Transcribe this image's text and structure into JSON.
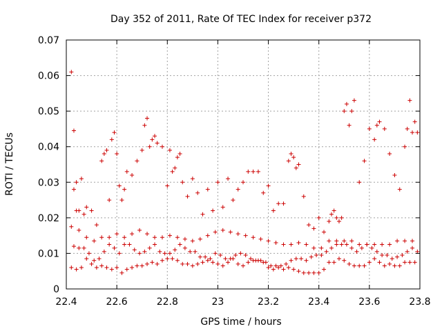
{
  "chart_data": {
    "type": "scatter",
    "title": "Day 352 of 2011, Rate Of TEC Index for receiver p372",
    "xlabel": "GPS time / hours",
    "ylabel": "ROTI / TECUs",
    "xlim": [
      22.4,
      23.8
    ],
    "ylim": [
      0,
      0.07
    ],
    "xticks": [
      "22.4",
      "22.6",
      "22.8",
      "23",
      "23.2",
      "23.4",
      "23.6",
      "23.8"
    ],
    "yticks": [
      "0",
      "0.01",
      "0.02",
      "0.03",
      "0.04",
      "0.05",
      "0.06",
      "0.07"
    ],
    "grid": true,
    "marker": "+",
    "color": "#cc0000",
    "series": [
      {
        "name": "ROTI",
        "x": [
          22.42,
          22.43,
          22.43,
          22.44,
          22.44,
          22.45,
          22.46,
          22.47,
          22.48,
          22.5,
          22.52,
          22.54,
          22.55,
          22.56,
          22.57,
          22.58,
          22.59,
          22.6,
          22.61,
          22.62,
          22.63,
          22.64,
          22.66,
          22.68,
          22.7,
          22.71,
          22.72,
          22.73,
          22.74,
          22.75,
          22.76,
          22.78,
          22.8,
          22.81,
          22.82,
          22.83,
          22.84,
          22.85,
          22.86,
          22.88,
          22.9,
          22.92,
          22.94,
          22.96,
          22.98,
          23.0,
          23.02,
          23.04,
          23.06,
          23.08,
          23.1,
          23.12,
          23.14,
          23.16,
          23.18,
          23.2,
          23.22,
          23.24,
          23.26,
          23.28,
          23.29,
          23.3,
          23.31,
          23.32,
          23.34,
          23.36,
          23.38,
          23.4,
          23.42,
          23.44,
          23.45,
          23.46,
          23.47,
          23.48,
          23.49,
          23.5,
          23.51,
          23.52,
          23.53,
          23.54,
          23.56,
          23.58,
          23.6,
          23.62,
          23.63,
          23.64,
          23.66,
          23.68,
          23.7,
          23.72,
          23.74,
          23.75,
          23.76,
          23.77,
          23.78,
          23.79,
          22.42,
          22.44,
          22.46,
          22.48,
          22.5,
          22.52,
          22.54,
          22.56,
          22.58,
          22.6,
          22.62,
          22.64,
          22.66,
          22.68,
          22.7,
          22.72,
          22.74,
          22.76,
          22.78,
          22.8,
          22.82,
          22.84,
          22.86,
          22.88,
          22.9,
          22.92,
          22.94,
          22.96,
          22.98,
          23.0,
          23.02,
          23.04,
          23.06,
          23.08,
          23.1,
          23.12,
          23.14,
          23.16,
          23.18,
          23.2,
          23.22,
          23.24,
          23.26,
          23.28,
          23.3,
          23.32,
          23.34,
          23.36,
          23.38,
          23.4,
          23.42,
          23.44,
          23.46,
          23.48,
          23.5,
          23.52,
          23.54,
          23.56,
          23.58,
          23.6,
          23.62,
          23.64,
          23.66,
          23.68,
          23.7,
          23.72,
          23.74,
          23.76,
          23.78,
          22.43,
          22.45,
          22.47,
          22.49,
          22.51,
          22.53,
          22.55,
          22.57,
          22.59,
          22.61,
          22.63,
          22.65,
          22.67,
          22.69,
          22.71,
          22.73,
          22.75,
          22.77,
          22.79,
          22.81,
          22.83,
          22.85,
          22.87,
          22.89,
          22.91,
          22.93,
          22.95,
          22.97,
          22.99,
          23.01,
          23.03,
          23.05,
          23.07,
          23.09,
          23.11,
          23.13,
          23.15,
          23.17,
          23.19,
          23.21,
          23.23,
          23.25,
          23.27,
          23.29,
          23.31,
          23.33,
          23.35,
          23.37,
          23.39,
          23.41,
          23.43,
          23.45,
          23.47,
          23.49,
          23.51,
          23.53,
          23.55,
          23.57,
          23.59,
          23.61,
          23.63,
          23.65,
          23.67,
          23.69,
          23.71,
          23.73,
          23.75,
          23.77,
          23.79,
          22.42,
          22.45,
          22.48,
          22.51,
          22.54,
          22.57,
          22.6,
          22.63,
          22.66,
          22.69,
          22.72,
          22.75,
          22.78,
          22.81,
          22.84,
          22.87,
          22.9,
          22.93,
          22.96,
          22.99,
          23.02,
          23.05,
          23.08,
          23.11,
          23.14,
          23.17,
          23.2,
          23.23,
          23.26,
          23.29,
          23.32,
          23.35,
          23.38,
          23.41,
          23.44,
          23.47,
          23.5,
          23.53,
          23.56,
          23.59,
          23.62,
          23.65,
          23.68,
          23.71,
          23.74,
          23.77
        ],
        "y": [
          0.061,
          0.0445,
          0.028,
          0.03,
          0.022,
          0.022,
          0.031,
          0.021,
          0.023,
          0.022,
          0.018,
          0.036,
          0.038,
          0.039,
          0.025,
          0.042,
          0.044,
          0.038,
          0.029,
          0.025,
          0.028,
          0.033,
          0.032,
          0.036,
          0.039,
          0.046,
          0.048,
          0.04,
          0.042,
          0.043,
          0.041,
          0.04,
          0.029,
          0.039,
          0.033,
          0.034,
          0.037,
          0.038,
          0.03,
          0.026,
          0.031,
          0.027,
          0.021,
          0.028,
          0.022,
          0.03,
          0.023,
          0.031,
          0.025,
          0.028,
          0.03,
          0.033,
          0.033,
          0.033,
          0.027,
          0.029,
          0.022,
          0.024,
          0.024,
          0.036,
          0.038,
          0.037,
          0.034,
          0.035,
          0.026,
          0.018,
          0.017,
          0.02,
          0.016,
          0.019,
          0.021,
          0.022,
          0.02,
          0.019,
          0.02,
          0.05,
          0.052,
          0.046,
          0.05,
          0.053,
          0.03,
          0.036,
          0.045,
          0.042,
          0.046,
          0.047,
          0.045,
          0.038,
          0.032,
          0.028,
          0.04,
          0.045,
          0.053,
          0.044,
          0.047,
          0.044,
          0.006,
          0.0055,
          0.006,
          0.0085,
          0.007,
          0.006,
          0.0065,
          0.006,
          0.0055,
          0.006,
          0.0045,
          0.0055,
          0.006,
          0.0065,
          0.0065,
          0.007,
          0.0075,
          0.007,
          0.008,
          0.0085,
          0.0085,
          0.008,
          0.007,
          0.007,
          0.0065,
          0.007,
          0.0075,
          0.008,
          0.0075,
          0.007,
          0.0065,
          0.0075,
          0.0085,
          0.007,
          0.0065,
          0.0075,
          0.008,
          0.008,
          0.0075,
          0.006,
          0.0055,
          0.006,
          0.0055,
          0.006,
          0.0055,
          0.005,
          0.0045,
          0.0045,
          0.0045,
          0.0045,
          0.0055,
          0.0075,
          0.0075,
          0.0085,
          0.008,
          0.007,
          0.0065,
          0.0065,
          0.0065,
          0.0075,
          0.0085,
          0.0075,
          0.0065,
          0.007,
          0.0065,
          0.0065,
          0.0075,
          0.0075,
          0.0075,
          0.012,
          0.0115,
          0.0115,
          0.01,
          0.008,
          0.0085,
          0.0105,
          0.0125,
          0.0115,
          0.01,
          0.0125,
          0.0125,
          0.011,
          0.01,
          0.0105,
          0.0115,
          0.0125,
          0.0105,
          0.01,
          0.01,
          0.011,
          0.0125,
          0.0115,
          0.0105,
          0.0105,
          0.009,
          0.009,
          0.0085,
          0.01,
          0.0095,
          0.0085,
          0.0085,
          0.0095,
          0.01,
          0.0095,
          0.0085,
          0.008,
          0.008,
          0.0075,
          0.0065,
          0.0065,
          0.0065,
          0.007,
          0.008,
          0.0085,
          0.0085,
          0.008,
          0.009,
          0.0095,
          0.0095,
          0.0105,
          0.0115,
          0.0125,
          0.0125,
          0.0125,
          0.0115,
          0.0105,
          0.0115,
          0.0125,
          0.0115,
          0.0105,
          0.0095,
          0.0095,
          0.0085,
          0.009,
          0.0095,
          0.0105,
          0.0115,
          0.0105,
          0.0175,
          0.0165,
          0.0145,
          0.0135,
          0.0145,
          0.0145,
          0.0155,
          0.0145,
          0.0155,
          0.0165,
          0.0155,
          0.0145,
          0.0145,
          0.015,
          0.0145,
          0.014,
          0.0135,
          0.014,
          0.015,
          0.016,
          0.0165,
          0.016,
          0.0155,
          0.015,
          0.0145,
          0.014,
          0.0135,
          0.013,
          0.0125,
          0.0125,
          0.013,
          0.0125,
          0.0115,
          0.0115,
          0.0135,
          0.0135,
          0.0135,
          0.0135,
          0.0125,
          0.0125,
          0.0125,
          0.0125,
          0.0125,
          0.0135,
          0.0135,
          0.0135
        ]
      }
    ]
  }
}
